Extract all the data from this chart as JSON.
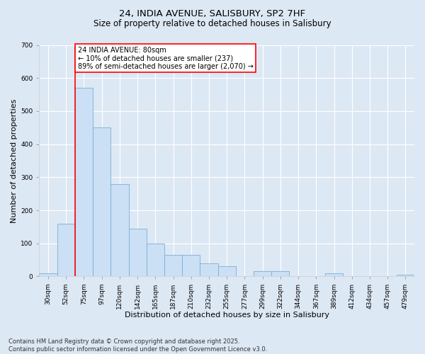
{
  "title_line1": "24, INDIA AVENUE, SALISBURY, SP2 7HF",
  "title_line2": "Size of property relative to detached houses in Salisbury",
  "xlabel": "Distribution of detached houses by size in Salisbury",
  "ylabel": "Number of detached properties",
  "categories": [
    "30sqm",
    "52sqm",
    "75sqm",
    "97sqm",
    "120sqm",
    "142sqm",
    "165sqm",
    "187sqm",
    "210sqm",
    "232sqm",
    "255sqm",
    "277sqm",
    "299sqm",
    "322sqm",
    "344sqm",
    "367sqm",
    "389sqm",
    "412sqm",
    "434sqm",
    "457sqm",
    "479sqm"
  ],
  "values": [
    10,
    160,
    570,
    450,
    280,
    145,
    100,
    65,
    65,
    40,
    30,
    0,
    15,
    15,
    0,
    0,
    10,
    0,
    0,
    0,
    5
  ],
  "bar_color": "#cce0f5",
  "bar_edge_color": "#7bafd4",
  "red_line_index": 2,
  "annotation_text": "24 INDIA AVENUE: 80sqm\n← 10% of detached houses are smaller (237)\n89% of semi-detached houses are larger (2,070) →",
  "annotation_box_color": "white",
  "annotation_box_edge": "red",
  "ylim": [
    0,
    700
  ],
  "yticks": [
    0,
    100,
    200,
    300,
    400,
    500,
    600,
    700
  ],
  "footer_line1": "Contains HM Land Registry data © Crown copyright and database right 2025.",
  "footer_line2": "Contains public sector information licensed under the Open Government Licence v3.0.",
  "bg_color": "#dde8f5",
  "plot_bg_color": "#dde8f5",
  "grid_color": "#ffffff",
  "title1_fontsize": 9.5,
  "title2_fontsize": 8.5,
  "tick_fontsize": 6.5,
  "label_fontsize": 8.0,
  "annot_fontsize": 7.0,
  "footer_fontsize": 6.0
}
